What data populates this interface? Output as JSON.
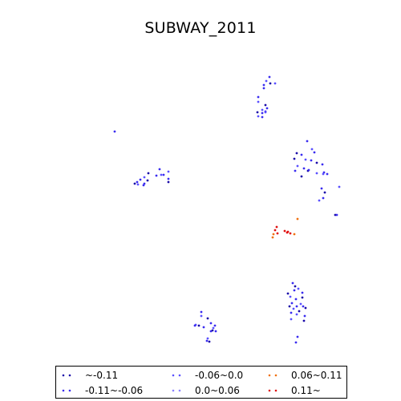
{
  "map": {
    "title": "SUBWAY_2011",
    "legend": [
      {
        "label": "~-0.11",
        "color": "#1a0aa8"
      },
      {
        "label": "-0.11~-0.06",
        "color": "#3a2cf0"
      },
      {
        "label": "-0.06~0.0",
        "color": "#5a50ff"
      },
      {
        "label": "0.0~0.06",
        "color": "#8a80ff"
      },
      {
        "label": "0.06~0.11",
        "color": "#f07010"
      },
      {
        "label": "0.11~",
        "color": "#e01010"
      }
    ]
  }
}
